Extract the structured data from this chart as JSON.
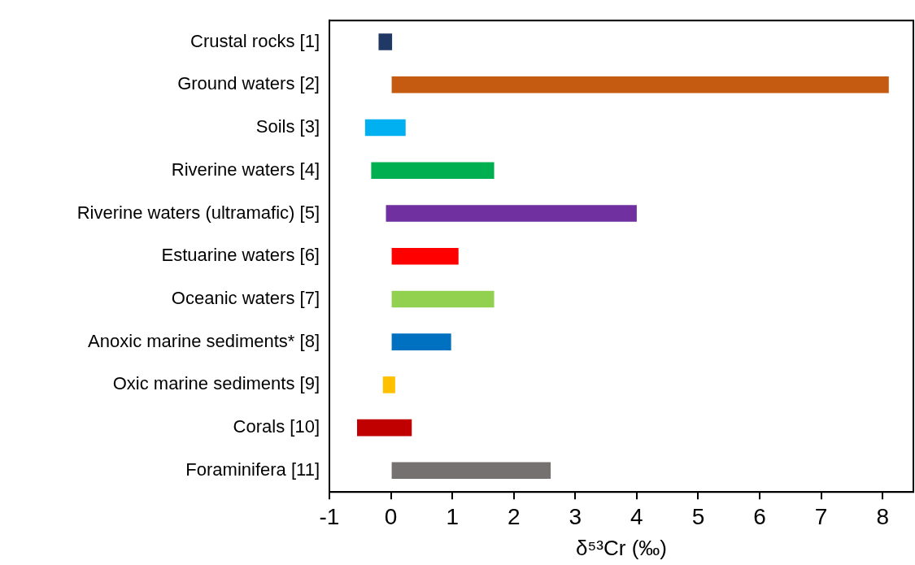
{
  "chart_data": {
    "type": "bar",
    "orientation": "horizontal",
    "xlabel": "δ⁵³Cr (‰)",
    "categories": [
      "Crustal rocks [1]",
      "Ground waters [2]",
      "Soils [3]",
      "Riverine waters [4]",
      "Riverine waters (ultramafic) [5]",
      "Estuarine waters [6]",
      "Oceanic waters [7]",
      "Anoxic marine sediments* [8]",
      "Oxic marine sediments [9]",
      "Corals [10]",
      "Foraminifera [11]"
    ],
    "base": [
      -0.2,
      0,
      -0.42,
      -0.32,
      -0.08,
      0,
      0,
      0,
      -0.13,
      -0.55,
      0
    ],
    "values": [
      0.22,
      8.1,
      0.66,
      2.0,
      4.08,
      1.1,
      1.68,
      0.98,
      0.2,
      0.89,
      2.6
    ],
    "colors": [
      "#1f3864",
      "#c55a11",
      "#00b0f0",
      "#00b050",
      "#7030a0",
      "#ff0000",
      "#92d050",
      "#0070c0",
      "#ffc000",
      "#c00000",
      "#767171"
    ],
    "xlim": [
      -1,
      8.5
    ],
    "xticks": [
      -1,
      0,
      1,
      2,
      3,
      4,
      5,
      6,
      7,
      8
    ],
    "grid": false,
    "legend": false
  }
}
